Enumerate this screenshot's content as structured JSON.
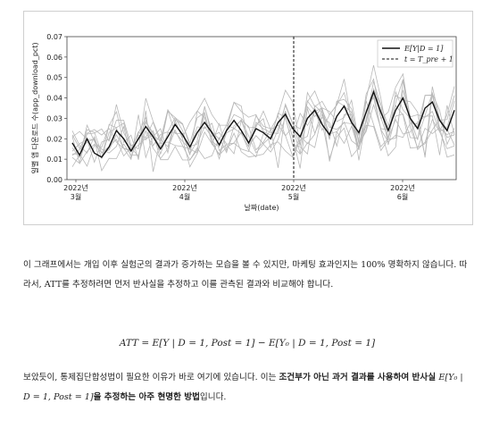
{
  "chart_data": {
    "type": "line",
    "ylabel": "일별 앱 다운로드 수(app_download_pct)",
    "xlabel": "날짜(date)",
    "ylim": [
      0.0,
      0.07
    ],
    "yticks": [
      "0.07",
      "0.06",
      "0.05",
      "0.04",
      "0.03",
      "0.02",
      "0.01",
      "0.00"
    ],
    "xticks": [
      {
        "year": "2022년",
        "month": "3월"
      },
      {
        "year": "2022년",
        "month": "4월"
      },
      {
        "year": "2022년",
        "month": "5월"
      },
      {
        "year": "2022년",
        "month": "6월"
      }
    ],
    "legend": [
      {
        "label": "E[Y|D = 1]",
        "style": "solid"
      },
      {
        "label": "t = T_pre + 1",
        "style": "dashed"
      }
    ],
    "legend_position": "top-right",
    "treated_mean": [
      0.018,
      0.012,
      0.02,
      0.013,
      0.011,
      0.016,
      0.024,
      0.02,
      0.014,
      0.02,
      0.026,
      0.021,
      0.015,
      0.021,
      0.027,
      0.022,
      0.016,
      0.023,
      0.028,
      0.023,
      0.017,
      0.024,
      0.029,
      0.024,
      0.018,
      0.025,
      0.023,
      0.02,
      0.028,
      0.032,
      0.025,
      0.021,
      0.03,
      0.034,
      0.027,
      0.022,
      0.031,
      0.036,
      0.028,
      0.023,
      0.033,
      0.043,
      0.033,
      0.024,
      0.034,
      0.04,
      0.03,
      0.025,
      0.035,
      0.038,
      0.029,
      0.024,
      0.034
    ],
    "control_series_count": 10
  },
  "text": {
    "para1": "이 그래프에서는 개입 이후 실험군의 결과가 증가하는 모습을 볼 수 있지만, 마케팅 효과인지는 100% 명확하지 않습니다. 따라서, ATT를 추정하려면 먼저 반사실을 추정하고 이를 관측된 결과와 비교해야 합니다.",
    "equation": "ATT = E[Y | D = 1, Post = 1] − E[Y₀ | D = 1, Post = 1]",
    "para2_a": "보았듯이, 통제집단합성법이 필요한 이유가 바로 여기에 있습니다. 이는 ",
    "para2_b": "조건부가 아닌 과거 결과를 사용하여 반사실 ",
    "para2_c": "E[Y₀ | D = 1, Post = 1]",
    "para2_d": "을 추정하는 아주 현명한 방법",
    "para2_e": "입니다."
  }
}
